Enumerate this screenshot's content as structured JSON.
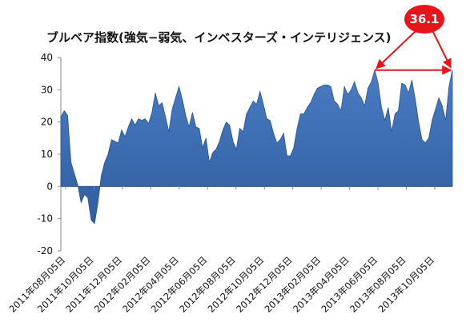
{
  "chart_data": {
    "type": "area",
    "title": "ブルベア指数(強気−弱気、インベスターズ・インテリジェンス)",
    "ylim": [
      -20,
      40
    ],
    "yticks": [
      -20,
      -10,
      0,
      10,
      20,
      30,
      40
    ],
    "xlabel": "",
    "ylabel": "",
    "grid": false,
    "colors": {
      "area": "#3f6eb5",
      "area_dark": "#2c548f",
      "annotation": "#e8141c"
    },
    "x_tick_labels": [
      "2011年08月05日",
      "2011年10月05日",
      "2011年12月05日",
      "2012年02月05日",
      "2012年04月05日",
      "2012年06月05日",
      "2012年08月05日",
      "2012年10月05日",
      "2012年12月05日",
      "2013年02月05日",
      "2013年04月05日",
      "2013年06月05日",
      "2013年08月05日",
      "2013年10月05日"
    ],
    "series": [
      {
        "values": [
          21.5,
          23.5,
          22.0,
          7.5,
          4.0,
          0.5,
          -5.0,
          -2.5,
          -3.5,
          -10.5,
          -11.5,
          -5.0,
          3.5,
          7.5,
          10.0,
          14.5,
          14.0,
          13.5,
          17.5,
          15.5,
          18.5,
          21.0,
          19.0,
          21.0,
          20.5,
          21.0,
          19.5,
          23.0,
          29.0,
          25.0,
          26.0,
          21.5,
          17.0,
          24.0,
          27.5,
          31.0,
          27.0,
          22.0,
          18.5,
          23.0,
          18.5,
          18.0,
          12.0,
          15.0,
          7.5,
          10.5,
          11.5,
          14.0,
          17.5,
          20.0,
          19.0,
          14.0,
          11.5,
          18.0,
          17.0,
          22.5,
          24.5,
          26.5,
          25.5,
          29.5,
          25.5,
          21.0,
          20.5,
          16.5,
          13.5,
          14.5,
          16.5,
          9.5,
          9.5,
          12.0,
          18.0,
          22.5,
          22.5,
          24.5,
          26.0,
          28.5,
          30.5,
          31.0,
          31.5,
          31.5,
          31.0,
          26.5,
          25.5,
          23.5,
          31.0,
          28.5,
          30.0,
          32.5,
          29.0,
          27.5,
          25.0,
          30.5,
          32.5,
          36.1,
          32.0,
          24.5,
          20.5,
          24.5,
          17.0,
          22.5,
          23.5,
          32.0,
          31.5,
          29.0,
          33.0,
          27.0,
          20.0,
          14.5,
          13.5,
          15.0,
          20.5,
          24.0,
          27.5,
          25.0,
          20.5,
          31.0,
          36.1
        ]
      }
    ],
    "annotations": [
      {
        "text": "36.1",
        "value": 36.1
      }
    ]
  }
}
